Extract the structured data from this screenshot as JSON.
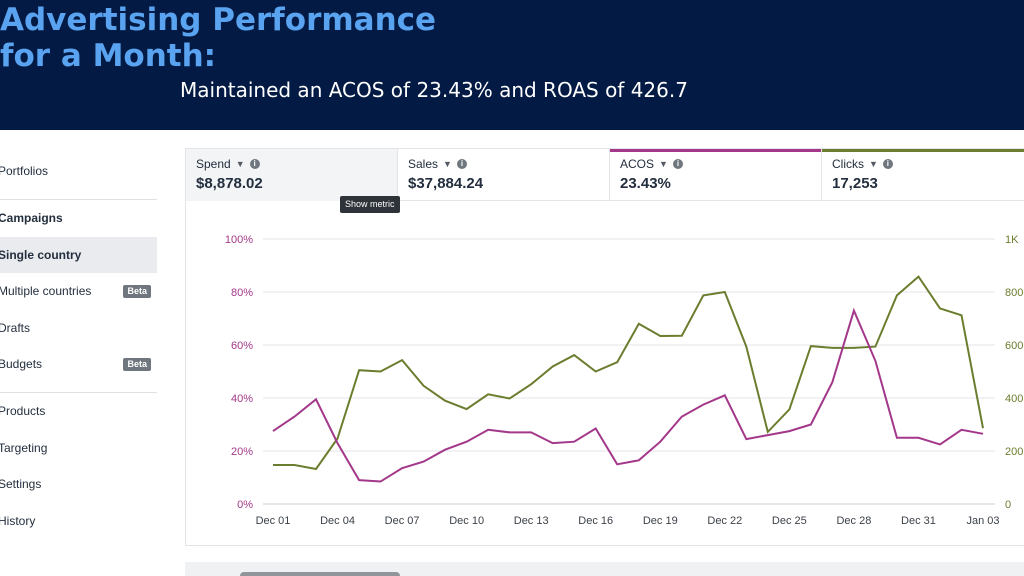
{
  "banner": {
    "title": "Advertising Performance for a Month:",
    "subtitle": "Maintained an ACOS of 23.43% and ROAS of 426.7"
  },
  "sidebar": {
    "items": [
      {
        "label": "Portfolios"
      },
      {
        "label": "Campaigns"
      },
      {
        "label": "Single country"
      },
      {
        "label": "Multiple countries",
        "badge": "Beta"
      },
      {
        "label": "Drafts"
      },
      {
        "label": "Budgets",
        "badge": "Beta"
      },
      {
        "label": "Products"
      },
      {
        "label": "Targeting"
      },
      {
        "label": "Settings"
      },
      {
        "label": "History"
      }
    ]
  },
  "metrics": [
    {
      "name": "Spend",
      "value": "$8,878.02"
    },
    {
      "name": "Sales",
      "value": "$37,884.24"
    },
    {
      "name": "ACOS",
      "value": "23.43%"
    },
    {
      "name": "Clicks",
      "value": "17,253"
    }
  ],
  "tooltip": "Show metric",
  "colors": {
    "acos": "#a3388a",
    "clicks": "#6b7d2e"
  },
  "chart_data": {
    "type": "line",
    "categories": [
      "Dec 01",
      "Dec 02",
      "Dec 03",
      "Dec 04",
      "Dec 05",
      "Dec 06",
      "Dec 07",
      "Dec 08",
      "Dec 09",
      "Dec 10",
      "Dec 11",
      "Dec 12",
      "Dec 13",
      "Dec 14",
      "Dec 15",
      "Dec 16",
      "Dec 17",
      "Dec 18",
      "Dec 19",
      "Dec 20",
      "Dec 21",
      "Dec 22",
      "Dec 23",
      "Dec 24",
      "Dec 25",
      "Dec 26",
      "Dec 27",
      "Dec 28",
      "Dec 29",
      "Dec 30",
      "Dec 31",
      "Jan 01",
      "Jan 02",
      "Jan 03"
    ],
    "tick_labels": [
      "Dec 01",
      "Dec 04",
      "Dec 07",
      "Dec 10",
      "Dec 13",
      "Dec 16",
      "Dec 19",
      "Dec 22",
      "Dec 25",
      "Dec 28",
      "Dec 31",
      "Jan 03"
    ],
    "y_left": {
      "ticks": [
        "0%",
        "20%",
        "40%",
        "60%",
        "80%",
        "100%"
      ],
      "range": [
        0,
        100
      ]
    },
    "y_right": {
      "ticks": [
        "0",
        "200",
        "400",
        "600",
        "800",
        "1K"
      ],
      "range": [
        0,
        1000
      ]
    },
    "series": [
      {
        "name": "ACOS",
        "axis": "left",
        "values": [
          27.5,
          33,
          39.5,
          23,
          9,
          8.5,
          13.5,
          16,
          20.5,
          23.5,
          28,
          27,
          27,
          23,
          23.5,
          28.5,
          15,
          16.5,
          23.5,
          33,
          37.5,
          41,
          24.5,
          26,
          27.5,
          30,
          46,
          73,
          54,
          25,
          25,
          22.5,
          28,
          26.5
        ]
      },
      {
        "name": "Clicks",
        "axis": "right",
        "values": [
          147,
          147,
          132,
          247,
          505,
          500,
          543,
          446,
          390,
          358,
          414,
          398,
          452,
          519,
          562,
          500,
          535,
          680,
          634,
          635,
          787,
          800,
          594,
          272,
          357,
          596,
          589,
          589,
          594,
          787,
          858,
          738,
          712,
          286
        ]
      }
    ],
    "grid": true
  }
}
